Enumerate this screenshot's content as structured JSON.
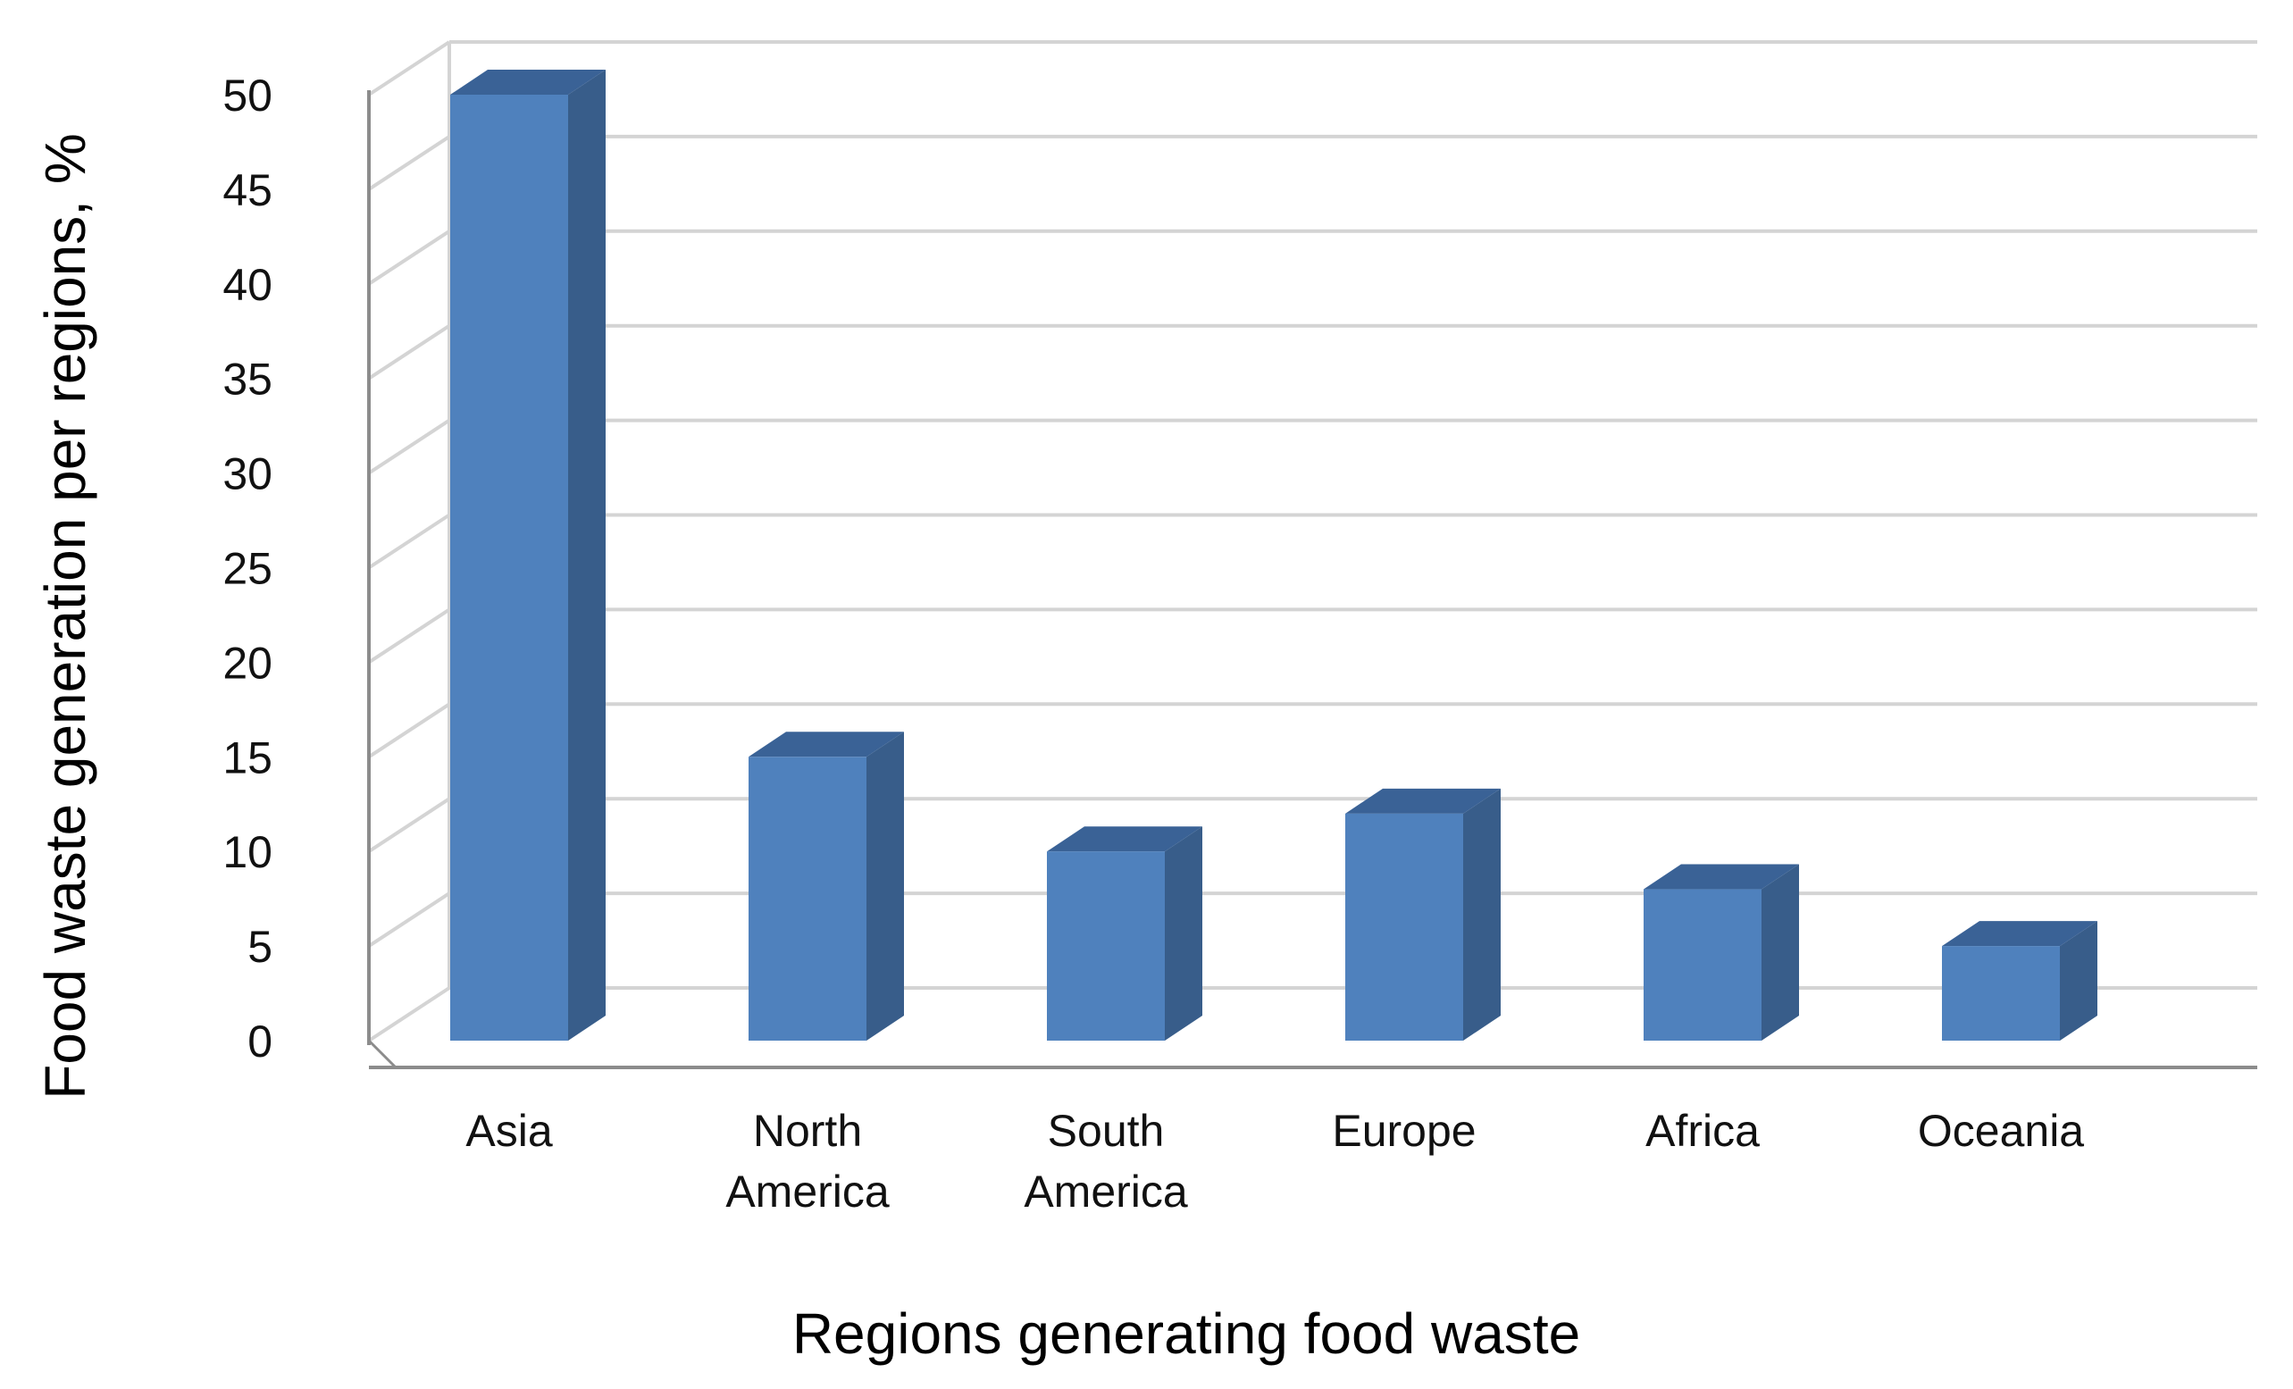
{
  "chart_data": {
    "type": "bar",
    "style": "3d-column",
    "categories": [
      [
        "Asia"
      ],
      [
        "North",
        "America"
      ],
      [
        "South",
        "America"
      ],
      [
        "Europe"
      ],
      [
        "Africa"
      ],
      [
        "Oceania"
      ]
    ],
    "values": [
      50,
      15,
      10,
      12,
      8,
      5
    ],
    "xlabel": "Regions generating food waste",
    "ylabel": "Food waste generation per regions, %",
    "ylim": [
      0,
      50
    ],
    "yticks": [
      0,
      5,
      10,
      15,
      20,
      25,
      30,
      35,
      40,
      45,
      50
    ],
    "grid": true,
    "legend": "none",
    "colors": {
      "bar_front": "#4f81bd",
      "bar_side": "#385d8a",
      "bar_top": "#3a6296",
      "grid": "#d4d4d4",
      "axis": "#8c8c8c"
    }
  }
}
